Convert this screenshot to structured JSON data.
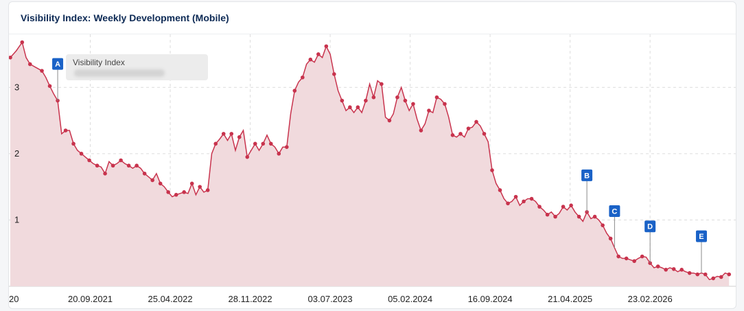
{
  "card": {
    "title": "Visibility Index: Weekly Development (Mobile)"
  },
  "tooltip": {
    "label": "Visibility Index"
  },
  "colors": {
    "line": "#c8334d",
    "area": "#f1dadd",
    "marker": "#1a62c7",
    "title": "#0d2a55"
  },
  "chart_data": {
    "type": "area",
    "title": "Visibility Index: Weekly Development (Mobile)",
    "xlabel": "",
    "ylabel": "",
    "ylim": [
      0,
      3.8
    ],
    "grid": true,
    "legend": "none",
    "yticks": [
      "1",
      "2",
      "3"
    ],
    "xticks": [
      "20",
      "20.09.2021",
      "25.04.2022",
      "28.11.2022",
      "03.07.2023",
      "05.02.2024",
      "16.09.2024",
      "21.04.2025",
      "23.02.2026"
    ],
    "series": [
      {
        "values": [
          [
            0.0,
            3.45
          ],
          [
            0.3,
            3.55
          ],
          [
            0.6,
            3.68
          ],
          [
            0.8,
            3.45
          ],
          [
            1.0,
            3.35
          ],
          [
            1.3,
            3.3
          ],
          [
            1.6,
            3.25
          ],
          [
            1.8,
            3.15
          ],
          [
            2.0,
            3.02
          ],
          [
            2.2,
            2.9
          ],
          [
            2.4,
            2.8
          ],
          [
            2.6,
            2.3
          ],
          [
            2.8,
            2.35
          ],
          [
            3.0,
            2.35
          ],
          [
            3.2,
            2.15
          ],
          [
            3.4,
            2.05
          ],
          [
            3.6,
            2.0
          ],
          [
            3.8,
            1.95
          ],
          [
            4.0,
            1.9
          ],
          [
            4.2,
            1.85
          ],
          [
            4.4,
            1.82
          ],
          [
            4.6,
            1.8
          ],
          [
            4.8,
            1.7
          ],
          [
            5.0,
            1.88
          ],
          [
            5.2,
            1.82
          ],
          [
            5.4,
            1.85
          ],
          [
            5.6,
            1.9
          ],
          [
            5.8,
            1.85
          ],
          [
            6.0,
            1.82
          ],
          [
            6.2,
            1.78
          ],
          [
            6.4,
            1.82
          ],
          [
            6.6,
            1.78
          ],
          [
            6.8,
            1.7
          ],
          [
            7.0,
            1.65
          ],
          [
            7.2,
            1.6
          ],
          [
            7.4,
            1.7
          ],
          [
            7.6,
            1.55
          ],
          [
            7.8,
            1.5
          ],
          [
            8.0,
            1.42
          ],
          [
            8.2,
            1.35
          ],
          [
            8.4,
            1.38
          ],
          [
            8.6,
            1.4
          ],
          [
            8.8,
            1.42
          ],
          [
            9.0,
            1.4
          ],
          [
            9.2,
            1.55
          ],
          [
            9.4,
            1.38
          ],
          [
            9.6,
            1.5
          ],
          [
            9.8,
            1.42
          ],
          [
            10.0,
            1.45
          ],
          [
            10.2,
            2.0
          ],
          [
            10.4,
            2.15
          ],
          [
            10.6,
            2.22
          ],
          [
            10.8,
            2.3
          ],
          [
            11.0,
            2.2
          ],
          [
            11.2,
            2.3
          ],
          [
            11.4,
            2.05
          ],
          [
            11.6,
            2.25
          ],
          [
            11.8,
            2.35
          ],
          [
            12.0,
            1.95
          ],
          [
            12.2,
            2.05
          ],
          [
            12.4,
            2.15
          ],
          [
            12.6,
            2.05
          ],
          [
            12.8,
            2.15
          ],
          [
            13.0,
            2.28
          ],
          [
            13.2,
            2.15
          ],
          [
            13.4,
            2.1
          ],
          [
            13.6,
            2.0
          ],
          [
            13.8,
            2.1
          ],
          [
            14.0,
            2.1
          ],
          [
            14.2,
            2.6
          ],
          [
            14.4,
            2.95
          ],
          [
            14.6,
            3.08
          ],
          [
            14.8,
            3.15
          ],
          [
            15.0,
            3.35
          ],
          [
            15.2,
            3.42
          ],
          [
            15.4,
            3.38
          ],
          [
            15.6,
            3.5
          ],
          [
            15.8,
            3.45
          ],
          [
            16.0,
            3.62
          ],
          [
            16.2,
            3.5
          ],
          [
            16.4,
            3.2
          ],
          [
            16.6,
            2.95
          ],
          [
            16.8,
            2.8
          ],
          [
            17.0,
            2.65
          ],
          [
            17.2,
            2.7
          ],
          [
            17.4,
            2.62
          ],
          [
            17.6,
            2.7
          ],
          [
            17.8,
            2.62
          ],
          [
            18.0,
            2.8
          ],
          [
            18.2,
            3.05
          ],
          [
            18.4,
            2.85
          ],
          [
            18.6,
            3.1
          ],
          [
            18.8,
            3.05
          ],
          [
            19.0,
            2.55
          ],
          [
            19.2,
            2.5
          ],
          [
            19.4,
            2.6
          ],
          [
            19.6,
            2.85
          ],
          [
            19.8,
            3.0
          ],
          [
            20.0,
            2.8
          ],
          [
            20.2,
            2.65
          ],
          [
            20.4,
            2.75
          ],
          [
            20.6,
            2.52
          ],
          [
            20.8,
            2.35
          ],
          [
            21.0,
            2.45
          ],
          [
            21.2,
            2.65
          ],
          [
            21.4,
            2.62
          ],
          [
            21.6,
            2.85
          ],
          [
            21.8,
            2.82
          ],
          [
            22.0,
            2.75
          ],
          [
            22.2,
            2.55
          ],
          [
            22.4,
            2.28
          ],
          [
            22.6,
            2.25
          ],
          [
            22.8,
            2.3
          ],
          [
            23.0,
            2.25
          ],
          [
            23.2,
            2.38
          ],
          [
            23.4,
            2.4
          ],
          [
            23.6,
            2.48
          ],
          [
            23.8,
            2.42
          ],
          [
            24.0,
            2.3
          ],
          [
            24.2,
            2.18
          ],
          [
            24.4,
            1.75
          ],
          [
            24.6,
            1.55
          ],
          [
            24.8,
            1.45
          ],
          [
            25.0,
            1.32
          ],
          [
            25.2,
            1.25
          ],
          [
            25.4,
            1.28
          ],
          [
            25.6,
            1.35
          ],
          [
            25.8,
            1.22
          ],
          [
            26.0,
            1.28
          ],
          [
            26.2,
            1.32
          ],
          [
            26.4,
            1.32
          ],
          [
            26.6,
            1.28
          ],
          [
            26.8,
            1.2
          ],
          [
            27.0,
            1.15
          ],
          [
            27.2,
            1.08
          ],
          [
            27.4,
            1.12
          ],
          [
            27.6,
            1.05
          ],
          [
            27.8,
            1.1
          ],
          [
            28.0,
            1.2
          ],
          [
            28.2,
            1.15
          ],
          [
            28.4,
            1.22
          ],
          [
            28.6,
            1.12
          ],
          [
            28.8,
            1.05
          ],
          [
            29.0,
            0.98
          ],
          [
            29.2,
            1.12
          ],
          [
            29.4,
            1.02
          ],
          [
            29.6,
            1.05
          ],
          [
            29.8,
            1.0
          ],
          [
            30.0,
            0.92
          ],
          [
            30.2,
            0.8
          ],
          [
            30.4,
            0.72
          ],
          [
            30.6,
            0.58
          ],
          [
            30.8,
            0.45
          ],
          [
            31.0,
            0.42
          ],
          [
            31.2,
            0.42
          ],
          [
            31.4,
            0.4
          ],
          [
            31.6,
            0.38
          ],
          [
            31.8,
            0.42
          ],
          [
            32.0,
            0.45
          ],
          [
            32.2,
            0.44
          ],
          [
            32.4,
            0.35
          ],
          [
            32.6,
            0.28
          ],
          [
            32.8,
            0.3
          ],
          [
            33.0,
            0.28
          ],
          [
            33.2,
            0.25
          ],
          [
            33.4,
            0.28
          ],
          [
            33.6,
            0.26
          ],
          [
            33.8,
            0.22
          ],
          [
            34.0,
            0.25
          ],
          [
            34.2,
            0.22
          ],
          [
            34.4,
            0.2
          ],
          [
            34.6,
            0.2
          ],
          [
            34.8,
            0.18
          ],
          [
            35.0,
            0.2
          ],
          [
            35.2,
            0.18
          ],
          [
            35.4,
            0.1
          ],
          [
            35.6,
            0.12
          ],
          [
            35.8,
            0.15
          ],
          [
            36.0,
            0.14
          ],
          [
            36.2,
            0.2
          ],
          [
            36.4,
            0.18
          ]
        ]
      }
    ],
    "annotations": [
      {
        "label": "A",
        "x": 2.4,
        "y": 2.8
      },
      {
        "label": "B",
        "x": 29.2,
        "y": 1.12
      },
      {
        "label": "C",
        "x": 30.6,
        "y": 0.58
      },
      {
        "label": "D",
        "x": 32.4,
        "y": 0.35
      },
      {
        "label": "E",
        "x": 35.0,
        "y": 0.2
      }
    ]
  }
}
